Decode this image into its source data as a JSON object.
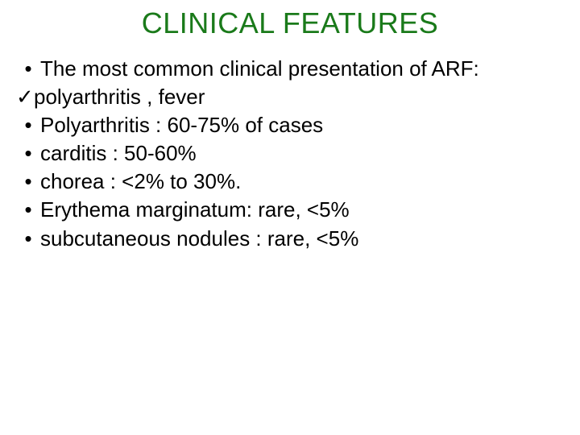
{
  "title": {
    "text": "CLINICAL FEATURES",
    "color": "#1a7a1a",
    "fontsize": 36
  },
  "body_fontsize": 26,
  "body_color": "#000000",
  "bullet_glyph": "•",
  "check_glyph": "✓",
  "lines": [
    {
      "type": "bullet",
      "text": "The most common clinical presentation of ARF:"
    },
    {
      "type": "check",
      "text": "polyarthritis  , fever"
    },
    {
      "type": "bullet",
      "text": " Polyarthritis : 60-75% of cases"
    },
    {
      "type": "bullet",
      "text": " carditis : 50-60%"
    },
    {
      "type": "bullet",
      "text": "chorea : <2% to 30%."
    },
    {
      "type": "bullet",
      "text": "Erythema marginatum: rare,  <5%"
    },
    {
      "type": "bullet",
      "text": "subcutaneous nodules : rare,  <5%"
    }
  ]
}
